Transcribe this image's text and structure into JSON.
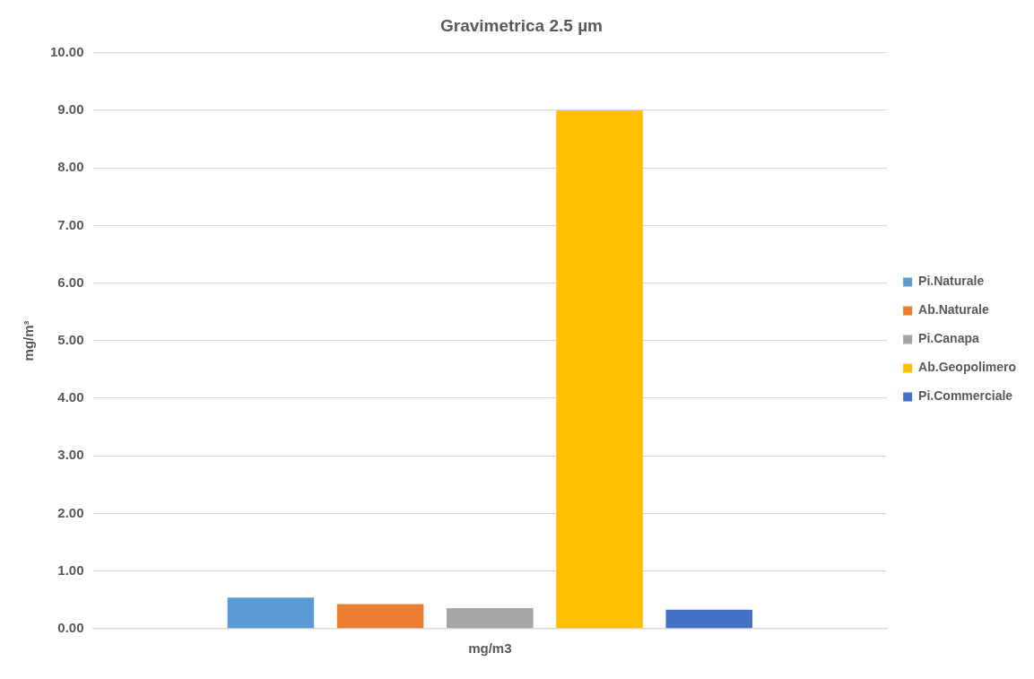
{
  "chart_data": {
    "type": "bar",
    "title": "Gravimetrica 2.5 µm",
    "ylabel": "mg/m³",
    "categories": [
      "mg/m3"
    ],
    "series": [
      {
        "name": "Pi.Naturale",
        "color": "#5b9bd5",
        "values": [
          0.54
        ]
      },
      {
        "name": "Ab.Naturale",
        "color": "#ed7d31",
        "values": [
          0.43
        ]
      },
      {
        "name": "Pi.Canapa",
        "color": "#a5a5a5",
        "values": [
          0.36
        ]
      },
      {
        "name": "Ab.Geopolimero",
        "color": "#ffc000",
        "values": [
          9.0
        ]
      },
      {
        "name": "Pi.Commerciale",
        "color": "#4472c4",
        "values": [
          0.33
        ]
      }
    ],
    "ylim": [
      0,
      10
    ],
    "yticks": [
      {
        "value": 0,
        "label": "0.00"
      },
      {
        "value": 1,
        "label": "1.00"
      },
      {
        "value": 2,
        "label": "2.00"
      },
      {
        "value": 3,
        "label": "3.00"
      },
      {
        "value": 4,
        "label": "4.00"
      },
      {
        "value": 5,
        "label": "5.00"
      },
      {
        "value": 6,
        "label": "6.00"
      },
      {
        "value": 7,
        "label": "7.00"
      },
      {
        "value": 8,
        "label": "8.00"
      },
      {
        "value": 9,
        "label": "9.00"
      },
      {
        "value": 10,
        "label": "10.00"
      }
    ],
    "grid": "y",
    "legend": "right"
  }
}
